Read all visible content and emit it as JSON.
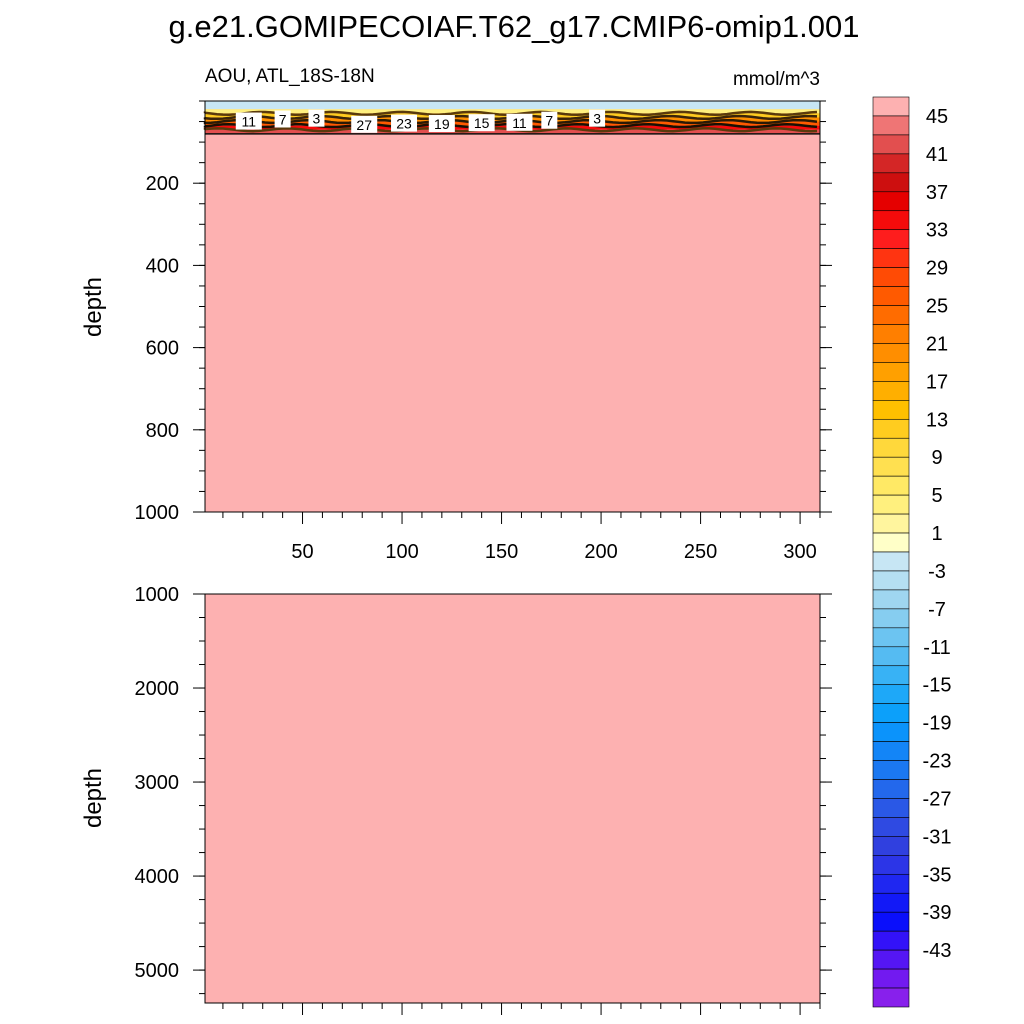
{
  "figure": {
    "title": "g.e21.GOMIPECOIAF.T62_g17.CMIP6-omip1.001"
  },
  "chart_data": [
    {
      "type": "heatmap",
      "panel": "upper",
      "title": "",
      "left_label": "AOU, ATL_18S-18N",
      "right_label": "mmol/m^3",
      "xlabel": "",
      "ylabel": "depth",
      "xlim": [
        1,
        310
      ],
      "ylim": [
        1000,
        0
      ],
      "x_ticks": [
        50,
        100,
        150,
        200,
        250,
        300
      ],
      "y_ticks": [
        200,
        400,
        600,
        800,
        1000
      ],
      "background_value": 47,
      "surface_layer": [
        {
          "depth_from": 0,
          "depth_to": 20,
          "value": -3
        },
        {
          "depth_from": 20,
          "depth_to": 30,
          "value": 3
        },
        {
          "depth_from": 30,
          "depth_to": 40,
          "value": 11
        },
        {
          "depth_from": 40,
          "depth_to": 50,
          "value": 19
        },
        {
          "depth_from": 50,
          "depth_to": 60,
          "value": 25
        },
        {
          "depth_from": 60,
          "depth_to": 70,
          "value": 33
        },
        {
          "depth_from": 70,
          "depth_to": 80,
          "value": 41
        }
      ],
      "contour_labels": [
        {
          "x": 23,
          "depth": 50,
          "text": "11"
        },
        {
          "x": 40,
          "depth": 45,
          "text": "7"
        },
        {
          "x": 57,
          "depth": 43,
          "text": "3"
        },
        {
          "x": 81,
          "depth": 58,
          "text": "27"
        },
        {
          "x": 101,
          "depth": 55,
          "text": "23"
        },
        {
          "x": 120,
          "depth": 56,
          "text": "19"
        },
        {
          "x": 140,
          "depth": 54,
          "text": "15"
        },
        {
          "x": 159,
          "depth": 53,
          "text": "11"
        },
        {
          "x": 174,
          "depth": 48,
          "text": "7"
        },
        {
          "x": 198,
          "depth": 43,
          "text": "3"
        }
      ]
    },
    {
      "type": "heatmap",
      "panel": "lower",
      "title": "",
      "xlabel": "",
      "ylabel": "depth",
      "xlim": [
        1,
        310
      ],
      "ylim": [
        5350,
        1000
      ],
      "y_ticks": [
        1000,
        2000,
        3000,
        4000,
        5000
      ],
      "background_value": 47
    }
  ],
  "colorbar": {
    "tick_labels": [
      "45",
      "41",
      "37",
      "33",
      "29",
      "25",
      "21",
      "17",
      "13",
      "9",
      "5",
      "1",
      "-3",
      "-7",
      "-11",
      "-15",
      "-19",
      "-23",
      "-27",
      "-31",
      "-35",
      "-39",
      "-43"
    ],
    "colors_top_to_bottom": [
      "#fdb1b1",
      "#ef7575",
      "#e24f4f",
      "#d42626",
      "#cd0f0f",
      "#e50000",
      "#f50b0b",
      "#fe1d1d",
      "#ff3411",
      "#ff4b05",
      "#ff5a00",
      "#ff6c00",
      "#ff7f00",
      "#ff8e00",
      "#ffa000",
      "#ffaf00",
      "#ffc000",
      "#ffcc1f",
      "#ffd83b",
      "#ffe050",
      "#ffe965",
      "#fff07e",
      "#fff59e",
      "#ffffc8",
      "#c7e6f4",
      "#b5dff2",
      "#9fd6f0",
      "#86cdf0",
      "#6cc4f1",
      "#55bbf2",
      "#38b2f5",
      "#1ea8f8",
      "#0ca0fa",
      "#0b93fb",
      "#1385f7",
      "#1b78f1",
      "#2368ec",
      "#2a58e6",
      "#2f4ae2",
      "#3040df",
      "#2c35e7",
      "#1f27f1",
      "#1219f7",
      "#0a0ffb",
      "#3312f8",
      "#5516f4",
      "#721af0",
      "#8820ec"
    ]
  }
}
